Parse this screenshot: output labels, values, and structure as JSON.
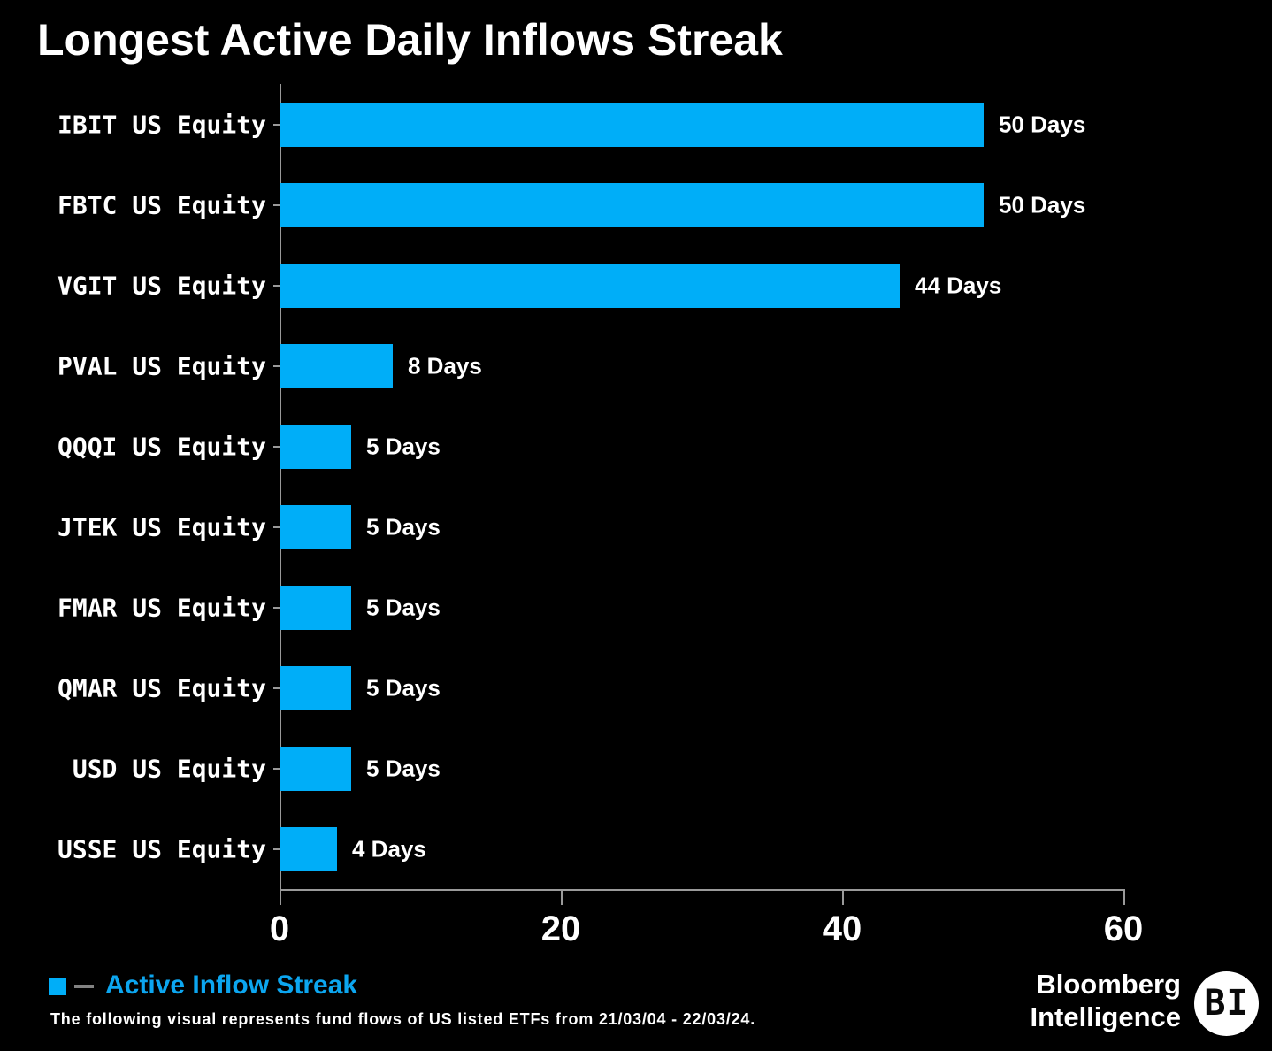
{
  "title": "Longest Active Daily Inflows Streak",
  "chart_data": {
    "type": "bar",
    "orientation": "horizontal",
    "title": "Longest Active Daily Inflows Streak",
    "categories": [
      "IBIT US Equity",
      "FBTC US Equity",
      "VGIT US Equity",
      "PVAL US Equity",
      "QQQI US Equity",
      "JTEK US Equity",
      "FMAR US Equity",
      "QMAR US Equity",
      "USD US Equity",
      "USSE US Equity"
    ],
    "values": [
      50,
      50,
      44,
      8,
      5,
      5,
      5,
      5,
      5,
      4
    ],
    "value_labels": [
      "50 Days",
      "50 Days",
      "44 Days",
      "8 Days",
      "5 Days",
      "5 Days",
      "5 Days",
      "5 Days",
      "5 Days",
      "4 Days"
    ],
    "series_name": "Active Inflow Streak",
    "xlabel": "",
    "ylabel": "",
    "xlim": [
      0,
      60
    ],
    "x_ticks": [
      0,
      20,
      40,
      60
    ],
    "grid": false,
    "legend_position": "bottom-left",
    "bar_color": "#00AEF8",
    "background_color": "#000000"
  },
  "legend": {
    "label": "Active Inflow Streak"
  },
  "footnote": "The following visual represents fund flows of US listed ETFs from 21/03/04 - 22/03/24.",
  "branding": {
    "line1": "Bloomberg",
    "line2": "Intelligence",
    "badge": "BI"
  },
  "colors": {
    "bar": "#00AEF8",
    "legend_text": "#0CA6F0",
    "axis": "#9A9A9A",
    "text": "#FFFFFF",
    "background": "#000000"
  }
}
